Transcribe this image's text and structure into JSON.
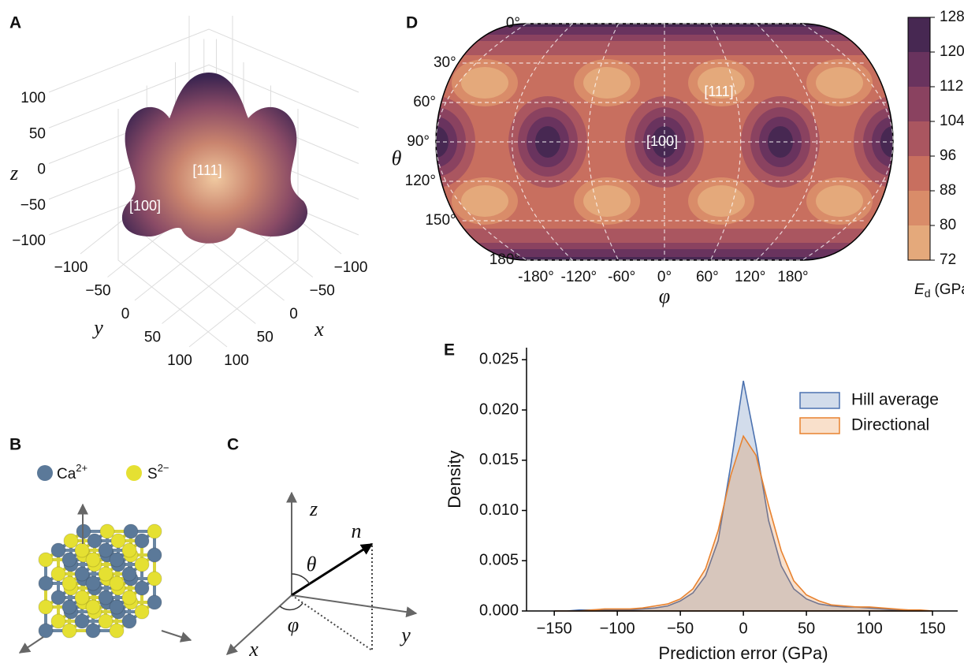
{
  "chart_data": [
    {
      "type": "surface3d",
      "panel_label": "A",
      "xlabel": "x",
      "ylabel": "y",
      "zlabel": "z",
      "xlim": [
        -100,
        100
      ],
      "ylim": [
        -100,
        100
      ],
      "zlim": [
        -100,
        100
      ],
      "xticks": [
        {
          "value": -100,
          "label": "−100"
        },
        {
          "value": -50,
          "label": "−50"
        },
        0,
        50,
        100
      ],
      "yticks": [
        {
          "value": -100,
          "label": "−100"
        },
        {
          "value": -50,
          "label": "−50"
        },
        0,
        50,
        100
      ],
      "zticks": [
        {
          "value": -100,
          "label": "−100"
        },
        {
          "value": -50,
          "label": "−50"
        },
        0,
        50,
        100
      ],
      "annotations": [
        "[111]",
        "[100]"
      ]
    },
    {
      "type": "contour_map",
      "panel_label": "D",
      "xlabel": "φ",
      "ylabel": "θ",
      "xlim": [
        -180,
        180
      ],
      "ylim": [
        0,
        180
      ],
      "xticks": [
        {
          "value": -180,
          "label": "-180°"
        },
        {
          "value": -120,
          "label": "-120°"
        },
        {
          "value": -60,
          "label": "-60°"
        },
        {
          "value": 0,
          "label": "0°"
        },
        {
          "value": 60,
          "label": "60°"
        },
        {
          "value": 120,
          "label": "120°"
        },
        {
          "value": 180,
          "label": "180°"
        }
      ],
      "yticks": [
        {
          "value": 0,
          "label": "0°"
        },
        {
          "value": 30,
          "label": "30°"
        },
        {
          "value": 60,
          "label": "60°"
        },
        {
          "value": 90,
          "label": "90°"
        },
        {
          "value": 120,
          "label": "120°"
        },
        {
          "value": 150,
          "label": "150°"
        },
        {
          "value": 180,
          "label": "180°"
        }
      ],
      "annotations": [
        "[111]",
        "[100]"
      ],
      "colorbar": {
        "label": "E",
        "label_subscript": "d",
        "label_unit": "(GPa)",
        "lim": [
          72,
          128
        ],
        "ticks": [
          72,
          80,
          88,
          96,
          104,
          112,
          120,
          128
        ],
        "colors": [
          "#e4a97b",
          "#d98c69",
          "#c86f5f",
          "#aa5660",
          "#8a4260",
          "#69335e",
          "#472852"
        ]
      }
    },
    {
      "type": "kde",
      "panel_label": "E",
      "xlabel": "Prediction error (GPa)",
      "ylabel": "Density",
      "xlim": [
        -172,
        170
      ],
      "ylim": [
        0,
        0.0262
      ],
      "xticks": [
        {
          "value": -150,
          "label": "−150"
        },
        {
          "value": -100,
          "label": "−100"
        },
        {
          "value": -50,
          "label": "−50"
        },
        0,
        50,
        100,
        150
      ],
      "yticks": [
        {
          "value": 0,
          "label": "0.000"
        },
        {
          "value": 0.005,
          "label": "0.005"
        },
        {
          "value": 0.01,
          "label": "0.010"
        },
        {
          "value": 0.015,
          "label": "0.015"
        },
        {
          "value": 0.02,
          "label": "0.020"
        },
        {
          "value": 0.025,
          "label": "0.025"
        }
      ],
      "legend": "upper right",
      "x": [
        -150,
        -140,
        -130,
        -120,
        -110,
        -100,
        -90,
        -80,
        -70,
        -60,
        -50,
        -40,
        -30,
        -20,
        -10,
        0,
        10,
        20,
        30,
        40,
        50,
        60,
        70,
        80,
        90,
        100,
        110,
        120,
        130,
        140,
        150
      ],
      "series": [
        {
          "name": "Hill average",
          "color": "#4c72b0",
          "values": [
            0,
            0,
            0.0001,
            0.0001,
            0.0001,
            0.0001,
            0.0001,
            0.0002,
            0.0003,
            0.0005,
            0.001,
            0.0018,
            0.0035,
            0.007,
            0.0145,
            0.0229,
            0.0165,
            0.009,
            0.0045,
            0.0022,
            0.0012,
            0.0007,
            0.0005,
            0.0004,
            0.0004,
            0.0003,
            0.0002,
            0.0001,
            0.0001,
            0,
            0
          ]
        },
        {
          "name": "Directional",
          "color": "#e8822f",
          "values": [
            0,
            0,
            0,
            0.0001,
            0.0002,
            0.0002,
            0.0002,
            0.0003,
            0.0005,
            0.0007,
            0.0012,
            0.0022,
            0.0042,
            0.008,
            0.0135,
            0.0174,
            0.0155,
            0.0105,
            0.006,
            0.003,
            0.0016,
            0.001,
            0.0006,
            0.0005,
            0.0004,
            0.0004,
            0.0003,
            0.0002,
            0.0001,
            0.0001,
            0
          ]
        }
      ]
    }
  ],
  "panel_b": {
    "panel_label": "B",
    "legend": [
      {
        "ion": "Ca",
        "charge": "2+"
      },
      {
        "ion": "S",
        "charge": "2−"
      }
    ]
  },
  "panel_c": {
    "panel_label": "C",
    "labels": {
      "z": "z",
      "n": "n",
      "theta": "θ",
      "phi": "φ",
      "x": "x",
      "y": "y"
    }
  }
}
